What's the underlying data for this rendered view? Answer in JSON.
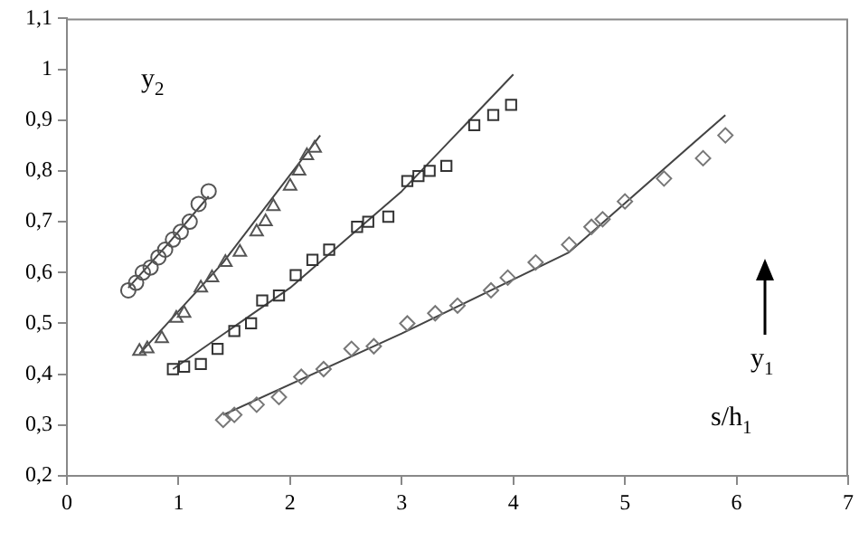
{
  "chart_data": {
    "type": "scatter",
    "xlabel": "s/h$_{1}$",
    "annotations": [
      "y$_{2}$",
      "y$_{1}$"
    ],
    "xlim": [
      0,
      7
    ],
    "xticks": [
      0,
      1,
      2,
      3,
      4,
      5,
      6,
      7
    ],
    "ylim": [
      0.2,
      1.1
    ],
    "yticks": [
      {
        "value": 0.2,
        "label": "0,2"
      },
      {
        "value": 0.3,
        "label": "0,3"
      },
      {
        "value": 0.4,
        "label": "0,4"
      },
      {
        "value": 0.5,
        "label": "0,5"
      },
      {
        "value": 0.6,
        "label": "0,6"
      },
      {
        "value": 0.7,
        "label": "0,7"
      },
      {
        "value": 0.8,
        "label": "0,8"
      },
      {
        "value": 0.9,
        "label": "0,9"
      },
      {
        "value": 1,
        "label": "1"
      },
      {
        "value": 1.1,
        "label": "1,1"
      }
    ],
    "grid": false,
    "legend": false,
    "series": [
      {
        "marker": "circle",
        "color": "#555555",
        "x": [
          0.55,
          0.62,
          0.68,
          0.75,
          0.82,
          0.88,
          0.95,
          1.02,
          1.1,
          1.18,
          1.27
        ],
        "values": [
          0.565,
          0.58,
          0.6,
          0.61,
          0.63,
          0.645,
          0.665,
          0.68,
          0.7,
          0.735,
          0.76
        ]
      },
      {
        "marker": "triangle",
        "color": "#555555",
        "x": [
          0.65,
          0.72,
          0.85,
          0.98,
          1.05,
          1.2,
          1.3,
          1.42,
          1.55,
          1.7,
          1.78,
          1.85,
          2.0,
          2.08,
          2.15,
          2.22
        ],
        "values": [
          0.445,
          0.45,
          0.47,
          0.51,
          0.52,
          0.57,
          0.59,
          0.62,
          0.64,
          0.68,
          0.7,
          0.73,
          0.77,
          0.8,
          0.83,
          0.845
        ]
      },
      {
        "marker": "square",
        "color": "#333333",
        "x": [
          0.95,
          1.05,
          1.2,
          1.35,
          1.5,
          1.65,
          1.75,
          1.9,
          2.05,
          2.2,
          2.35,
          2.6,
          2.7,
          2.88,
          3.05,
          3.15,
          3.25,
          3.4,
          3.65,
          3.82,
          3.98
        ],
        "values": [
          0.41,
          0.415,
          0.42,
          0.45,
          0.485,
          0.5,
          0.545,
          0.555,
          0.595,
          0.625,
          0.645,
          0.69,
          0.7,
          0.71,
          0.78,
          0.79,
          0.8,
          0.81,
          0.89,
          0.91,
          0.93
        ]
      },
      {
        "marker": "diamond",
        "color": "#777777",
        "x": [
          1.4,
          1.5,
          1.7,
          1.9,
          2.1,
          2.3,
          2.55,
          2.75,
          3.05,
          3.3,
          3.5,
          3.8,
          3.95,
          4.2,
          4.5,
          4.7,
          4.8,
          5.0,
          5.35,
          5.7,
          5.9
        ],
        "values": [
          0.31,
          0.32,
          0.34,
          0.355,
          0.395,
          0.41,
          0.45,
          0.455,
          0.5,
          0.52,
          0.535,
          0.565,
          0.59,
          0.62,
          0.655,
          0.69,
          0.705,
          0.74,
          0.785,
          0.825,
          0.87
        ]
      },
      {
        "type": "line",
        "marker": "none",
        "color": "#444444",
        "x": [
          0.55,
          0.9,
          1.27
        ],
        "values": [
          0.57,
          0.655,
          0.75
        ]
      },
      {
        "type": "line",
        "marker": "none",
        "color": "#444444",
        "x": [
          0.65,
          1.4,
          2.27
        ],
        "values": [
          0.44,
          0.62,
          0.87
        ]
      },
      {
        "type": "line",
        "marker": "none",
        "color": "#444444",
        "x": [
          0.95,
          2.0,
          3.0,
          4.0
        ],
        "values": [
          0.41,
          0.57,
          0.76,
          0.99
        ]
      },
      {
        "type": "line",
        "marker": "none",
        "color": "#444444",
        "x": [
          1.4,
          3.0,
          4.5,
          5.9
        ],
        "values": [
          0.32,
          0.48,
          0.64,
          0.91
        ]
      }
    ]
  }
}
